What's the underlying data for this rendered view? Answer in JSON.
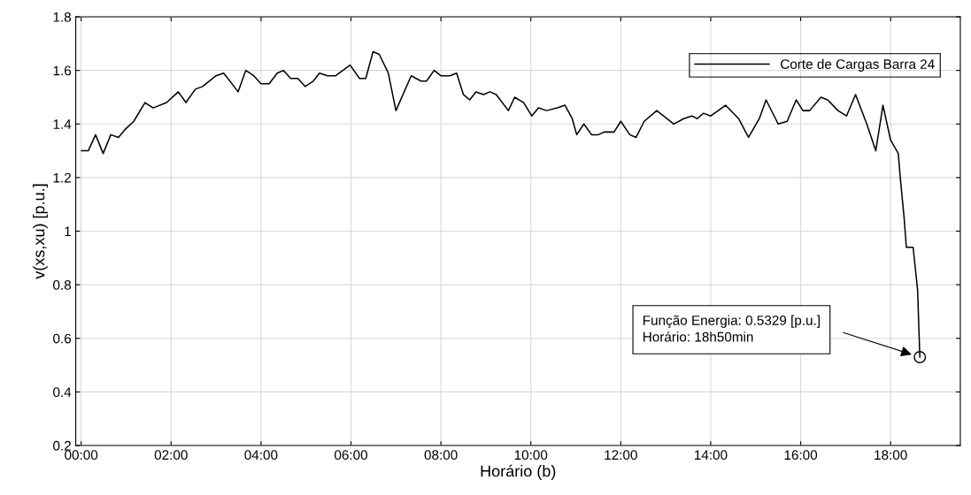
{
  "chart_data": {
    "type": "line",
    "xlabel": "Horário (b)",
    "ylabel": "v(xs,xu) [p.u.]",
    "series": [
      {
        "name": "Corte de Cargas Barra 24",
        "color": "#000000",
        "x": [
          0.01,
          0.16,
          0.32,
          0.49,
          0.66,
          0.83,
          0.98,
          1.17,
          1.42,
          1.6,
          1.9,
          2.16,
          2.33,
          2.54,
          2.7,
          3.0,
          3.17,
          3.49,
          3.66,
          3.84,
          4.0,
          4.18,
          4.36,
          4.5,
          4.66,
          4.82,
          4.98,
          5.16,
          5.3,
          5.48,
          5.66,
          5.98,
          6.19,
          6.33,
          6.49,
          6.63,
          6.83,
          7.0,
          7.34,
          7.56,
          7.68,
          7.85,
          8.0,
          8.2,
          8.35,
          8.5,
          8.64,
          8.78,
          8.95,
          9.09,
          9.23,
          9.5,
          9.64,
          9.84,
          10.02,
          10.17,
          10.35,
          10.59,
          10.76,
          10.92,
          11.02,
          11.18,
          11.35,
          11.5,
          11.63,
          11.85,
          12.0,
          12.2,
          12.34,
          12.52,
          12.8,
          13.18,
          13.4,
          13.58,
          13.7,
          13.84,
          14.0,
          14.33,
          14.62,
          14.84,
          15.08,
          15.23,
          15.5,
          15.7,
          15.9,
          16.05,
          16.2,
          16.45,
          16.6,
          16.83,
          17.02,
          17.22,
          17.47,
          17.67,
          17.83,
          18.0,
          18.17,
          18.22,
          18.3,
          18.35,
          18.5,
          18.6,
          18.65
        ],
        "values": [
          1.3,
          1.3,
          1.36,
          1.29,
          1.36,
          1.35,
          1.38,
          1.41,
          1.48,
          1.46,
          1.48,
          1.52,
          1.48,
          1.53,
          1.54,
          1.58,
          1.59,
          1.52,
          1.6,
          1.58,
          1.55,
          1.55,
          1.59,
          1.6,
          1.57,
          1.57,
          1.54,
          1.56,
          1.59,
          1.58,
          1.58,
          1.62,
          1.57,
          1.57,
          1.67,
          1.66,
          1.59,
          1.45,
          1.58,
          1.56,
          1.56,
          1.6,
          1.58,
          1.58,
          1.59,
          1.51,
          1.49,
          1.52,
          1.51,
          1.52,
          1.51,
          1.45,
          1.5,
          1.48,
          1.43,
          1.46,
          1.45,
          1.46,
          1.47,
          1.42,
          1.36,
          1.4,
          1.36,
          1.36,
          1.37,
          1.37,
          1.41,
          1.36,
          1.35,
          1.41,
          1.45,
          1.4,
          1.42,
          1.43,
          1.42,
          1.44,
          1.43,
          1.47,
          1.42,
          1.35,
          1.42,
          1.49,
          1.4,
          1.41,
          1.49,
          1.45,
          1.45,
          1.5,
          1.49,
          1.45,
          1.43,
          1.51,
          1.4,
          1.3,
          1.47,
          1.34,
          1.29,
          1.19,
          1.05,
          0.94,
          0.94,
          0.78,
          0.53
        ]
      }
    ],
    "xlim": [
      -0.12,
      19.55
    ],
    "ylim": [
      0.2,
      1.8
    ],
    "xticks": [
      {
        "value": 0,
        "label": "00:00"
      },
      {
        "value": 2,
        "label": "02:00"
      },
      {
        "value": 4,
        "label": "04:00"
      },
      {
        "value": 6,
        "label": "06:00"
      },
      {
        "value": 8,
        "label": "08:00"
      },
      {
        "value": 10,
        "label": "10:00"
      },
      {
        "value": 12,
        "label": "12:00"
      },
      {
        "value": 14,
        "label": "14:00"
      },
      {
        "value": 16,
        "label": "16:00"
      },
      {
        "value": 18,
        "label": "18:00"
      }
    ],
    "yticks": [
      0.2,
      0.4,
      0.6,
      0.8,
      1,
      1.2,
      1.4,
      1.6,
      1.8
    ],
    "annotations": [
      "Função Energia: 0.5329 [p.u.]\nHorário: 18h50min"
    ],
    "grid": true,
    "legend": "top right",
    "marker": "none",
    "line_style": "solid"
  }
}
